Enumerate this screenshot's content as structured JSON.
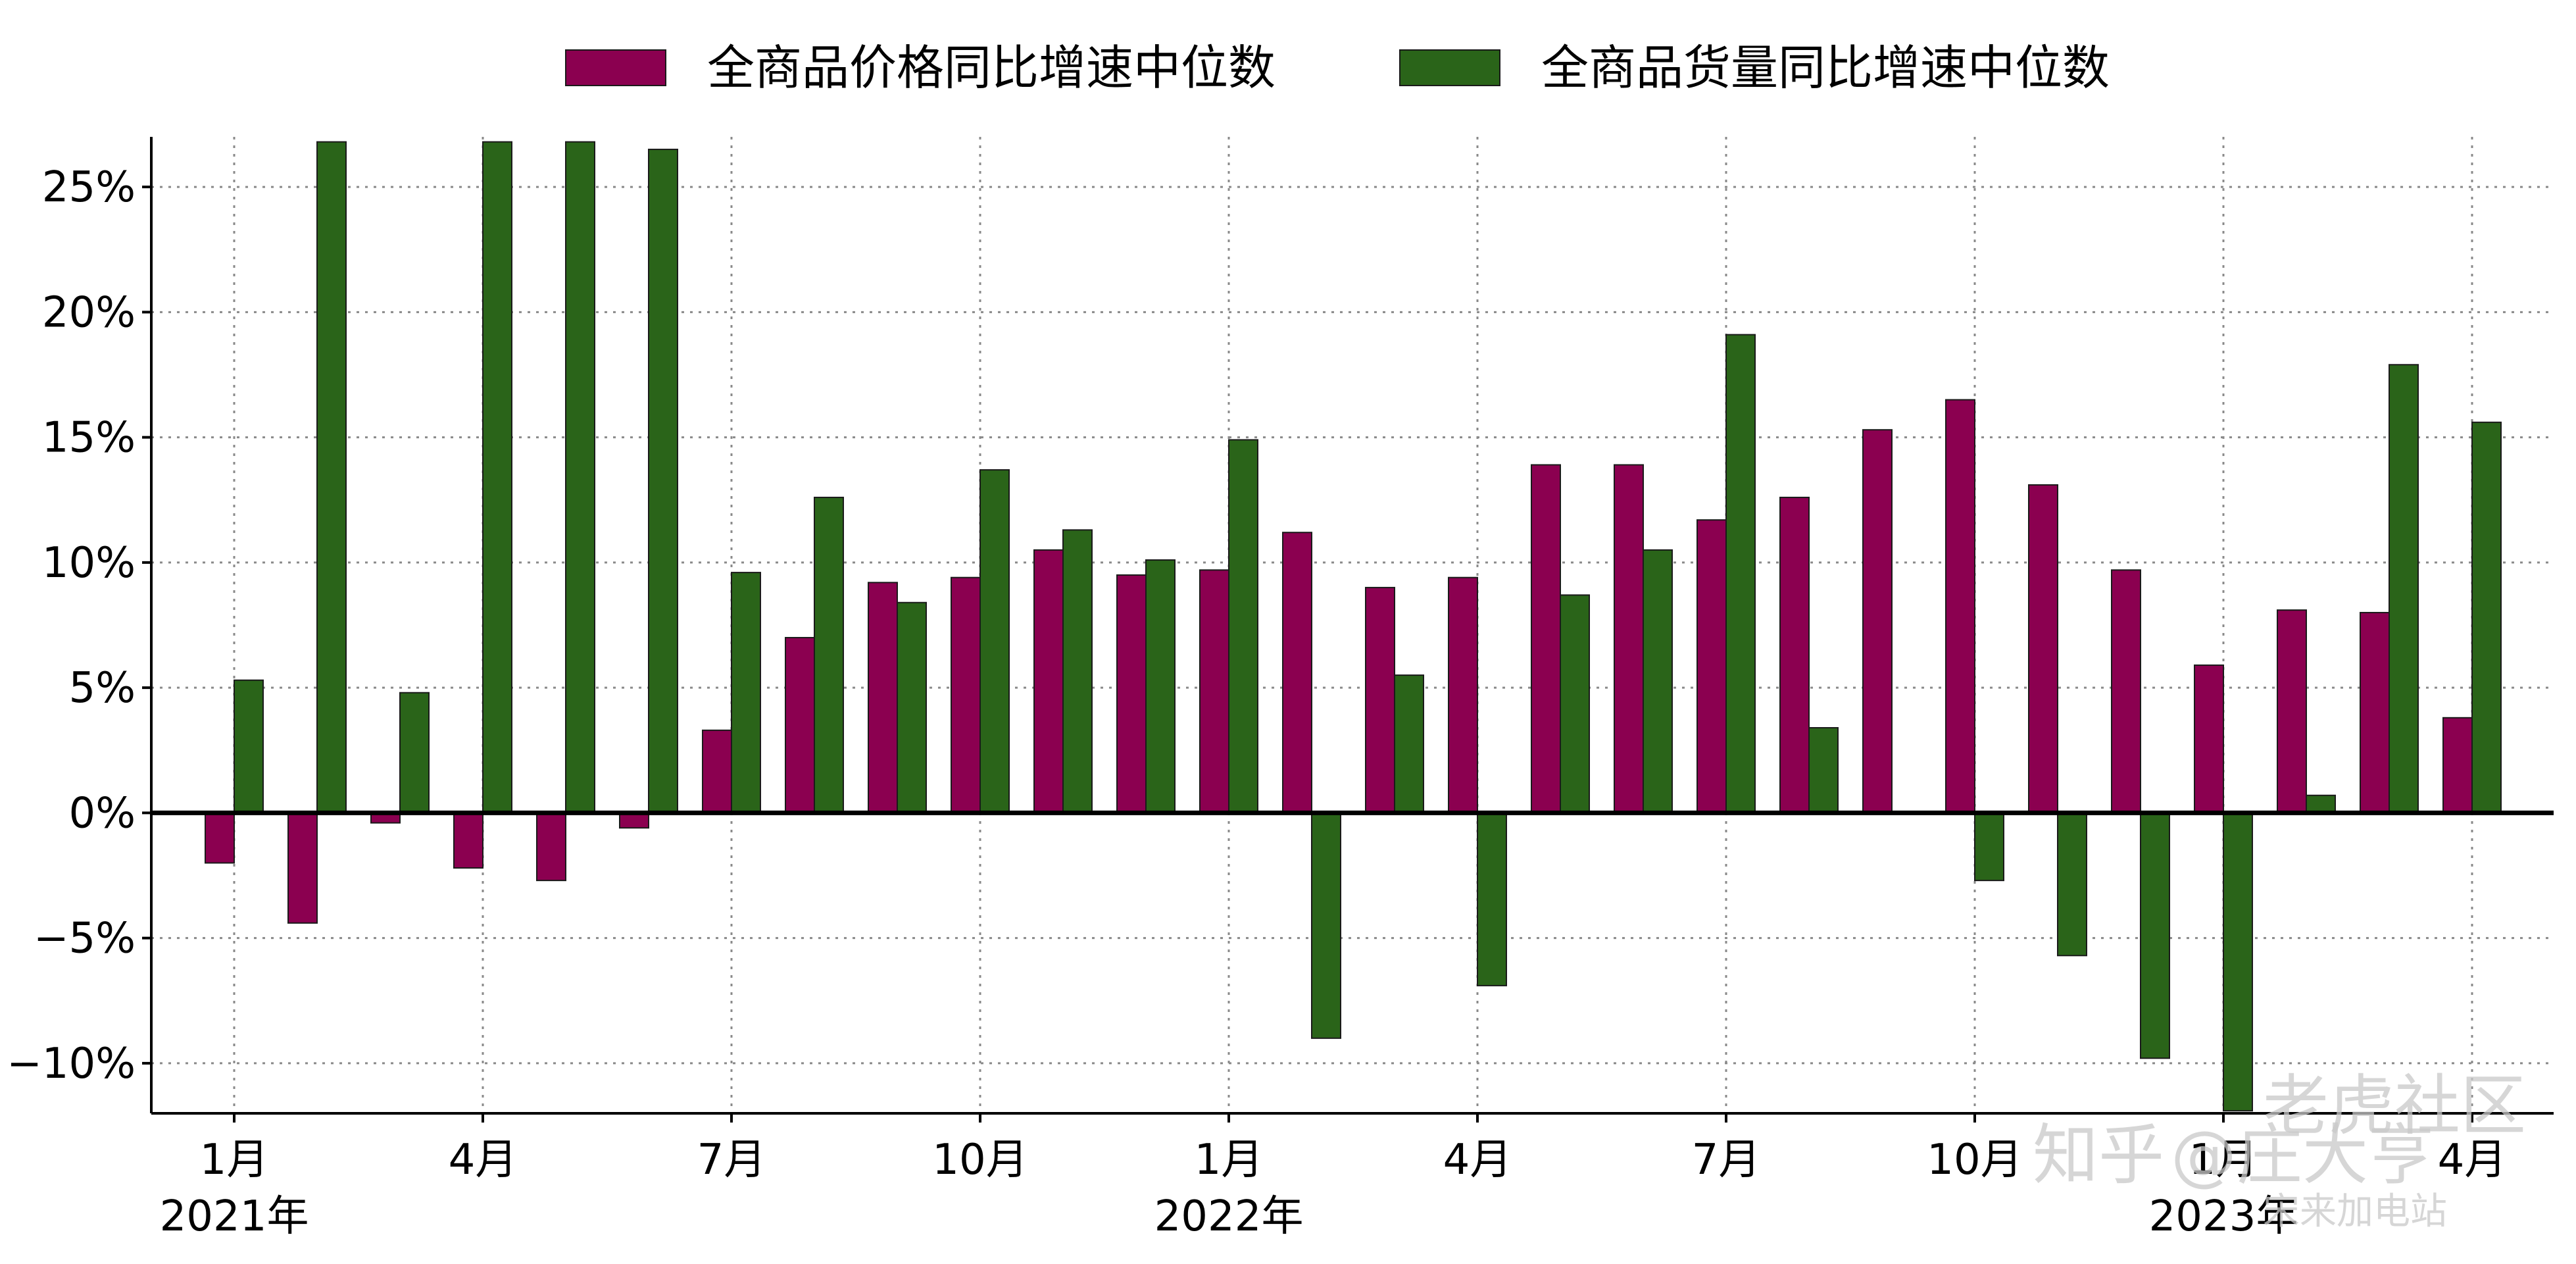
{
  "chart_data": {
    "type": "bar",
    "categories": [
      "2021-01",
      "2021-02",
      "2021-03",
      "2021-04",
      "2021-05",
      "2021-06",
      "2021-07",
      "2021-08",
      "2021-09",
      "2021-10",
      "2021-11",
      "2021-12",
      "2022-01",
      "2022-02",
      "2022-03",
      "2022-04",
      "2022-05",
      "2022-06",
      "2022-07",
      "2022-08",
      "2022-09",
      "2022-10",
      "2022-11",
      "2022-12",
      "2023-01",
      "2023-02",
      "2023-03",
      "2023-04"
    ],
    "series": [
      {
        "name": "全商品价格同比增速中位数",
        "color": "#8b0050",
        "values": [
          -2.0,
          -4.4,
          -0.4,
          -2.2,
          -2.7,
          -0.6,
          3.3,
          7.0,
          9.2,
          9.4,
          10.5,
          9.5,
          9.7,
          11.2,
          9.0,
          9.4,
          13.9,
          13.9,
          11.7,
          12.6,
          15.3,
          16.5,
          13.1,
          9.7,
          5.9,
          8.1,
          8.0,
          3.8
        ]
      },
      {
        "name": "全商品货量同比增速中位数",
        "color": "#2a6419",
        "values": [
          5.3,
          26.8,
          4.8,
          26.8,
          26.8,
          26.5,
          9.6,
          12.6,
          8.4,
          13.7,
          11.3,
          10.1,
          14.9,
          -9.0,
          5.5,
          -6.9,
          8.7,
          10.5,
          19.1,
          3.4,
          null,
          -2.7,
          -5.7,
          -9.8,
          -11.9,
          0.7,
          17.9,
          15.6
        ]
      }
    ],
    "ylim": [
      -12,
      27
    ],
    "yticks": [
      {
        "value": -10,
        "label": "−10%"
      },
      {
        "value": -5,
        "label": "−5%"
      },
      {
        "value": 0,
        "label": "0%"
      },
      {
        "value": 5,
        "label": "5%"
      },
      {
        "value": 10,
        "label": "10%"
      },
      {
        "value": 15,
        "label": "15%"
      },
      {
        "value": 20,
        "label": "20%"
      },
      {
        "value": 25,
        "label": "25%"
      }
    ],
    "xticks": [
      {
        "category": "2021-01",
        "label": "1月",
        "sublabel": "2021年"
      },
      {
        "category": "2021-04",
        "label": "4月",
        "sublabel": ""
      },
      {
        "category": "2021-07",
        "label": "7月",
        "sublabel": ""
      },
      {
        "category": "2021-10",
        "label": "10月",
        "sublabel": ""
      },
      {
        "category": "2022-01",
        "label": "1月",
        "sublabel": "2022年"
      },
      {
        "category": "2022-04",
        "label": "4月",
        "sublabel": ""
      },
      {
        "category": "2022-07",
        "label": "7月",
        "sublabel": ""
      },
      {
        "category": "2022-10",
        "label": "10月",
        "sublabel": ""
      },
      {
        "category": "2023-01",
        "label": "1月",
        "sublabel": "2023年"
      },
      {
        "category": "2023-04",
        "label": "4月",
        "sublabel": ""
      }
    ],
    "grid": true,
    "legend_position": "top-center",
    "title": "",
    "xlabel": "",
    "ylabel": ""
  },
  "watermark": {
    "zhihu": "知乎",
    "author": "@庄大亨",
    "forum": "老虎社区",
    "sub": "宋来加电站"
  }
}
